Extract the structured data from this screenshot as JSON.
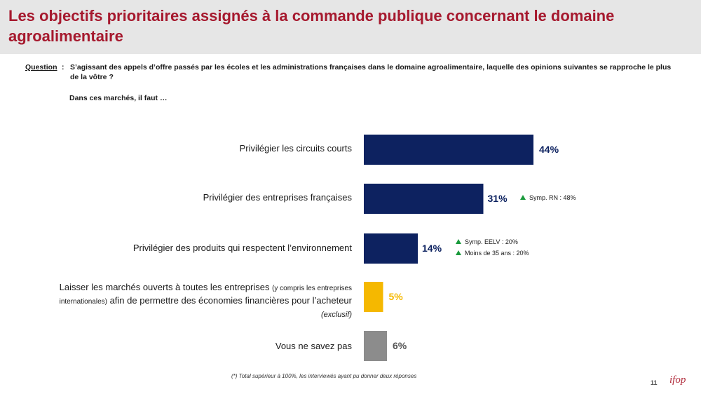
{
  "title": "Les objectifs prioritaires assignés à la commande publique concernant le domaine agroalimentaire",
  "question": {
    "label": "Question",
    "colon": ":",
    "text": "S’agissant des appels d’offre passés par les écoles et les administrations françaises dans le domaine agroalimentaire, laquelle des opinions suivantes se rapproche le plus de la vôtre ?"
  },
  "subhead": "Dans ces marchés, il faut …",
  "chart_data": {
    "type": "bar",
    "orientation": "horizontal",
    "categories": [
      "Privilégier les circuits courts",
      "Privilégier des entreprises françaises",
      "Privilégier des produits qui respectent l’environnement",
      "Laisser les marchés ouverts à toutes les entreprises (y compris les entreprises internationales) afin de permettre des économies financières pour l’acheteur (exclusif)",
      "Vous ne savez pas"
    ],
    "values": [
      44,
      31,
      14,
      5,
      6
    ],
    "value_labels": [
      "44%",
      "31%",
      "14%",
      "5%",
      "6%"
    ],
    "colors": [
      "#0d2260",
      "#0d2260",
      "#0d2260",
      "#f5b800",
      "#8c8c8c"
    ],
    "label_colors": [
      "#0d2260",
      "#0d2260",
      "#0d2260",
      "#f5b800",
      "#555555"
    ],
    "label_parts": {
      "cat4_line1": "Laisser les marchés ouverts à toutes les entreprises ",
      "cat4_small1": "(y compris les entreprises",
      "cat4_small2": "internationales)",
      "cat4_line2": " afin de permettre des économies financières pour l’acheteur",
      "cat4_line3": "(exclusif)"
    },
    "annotations": [
      {
        "bar_index": 1,
        "text": "Symp. RN : 48%"
      },
      {
        "bar_index": 2,
        "text": "Symp. EELV : 20%"
      },
      {
        "bar_index": 2,
        "text": "Moins de 35 ans : 20%"
      }
    ],
    "annotation_color": "#1a9a3c"
  },
  "footnote": "(*) Total supérieur à 100%, les interviewés ayant pu donner deux réponses",
  "page_number": "11",
  "logo": "ifop"
}
